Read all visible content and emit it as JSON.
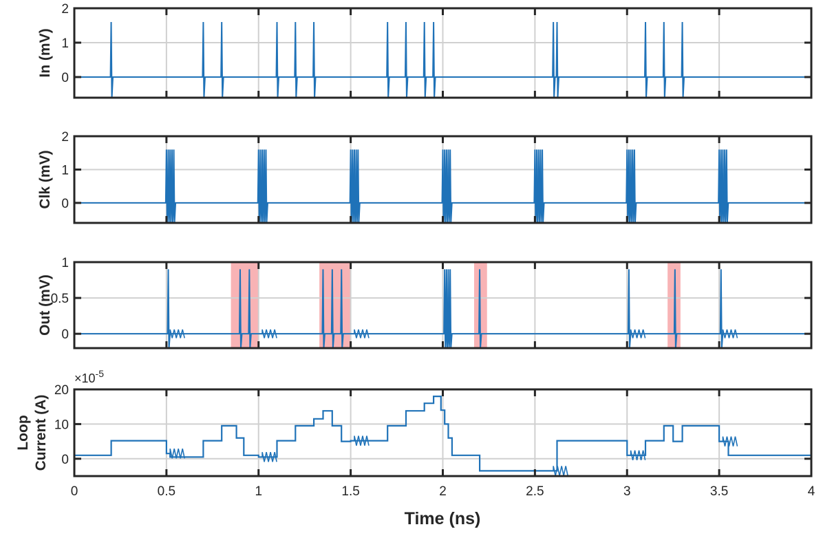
{
  "figure": {
    "xlabel": "Time (ns)"
  },
  "colors": {
    "trace": "#1f72b8",
    "grid": "#d0d0d0",
    "shade": "#f7a6a8",
    "axis": "#262626"
  },
  "chart_data": [
    {
      "type": "line",
      "ylabel": "In (mV)",
      "xlim": [
        0,
        4
      ],
      "ylim": [
        -0.6,
        2
      ],
      "yticks": [
        0,
        1,
        2
      ],
      "ytick_labels": [
        "0",
        "1",
        "2"
      ],
      "grid": true,
      "pulse": {
        "peak": 1.6,
        "trough": -0.6
      },
      "events_ns": [
        0.2,
        0.7,
        0.8,
        1.1,
        1.2,
        1.3,
        1.7,
        1.8,
        1.9,
        1.95,
        2.6,
        2.62,
        3.1,
        3.2,
        3.3
      ],
      "shaded_regions": []
    },
    {
      "type": "line",
      "ylabel": "Clk (mV)",
      "xlim": [
        0,
        4
      ],
      "ylim": [
        -0.6,
        2
      ],
      "yticks": [
        0,
        1,
        2
      ],
      "ytick_labels": [
        "0",
        "1",
        "2"
      ],
      "grid": true,
      "pulse": {
        "peak": 1.6,
        "trough": -0.6
      },
      "events_ns": [
        0.5,
        0.51,
        0.52,
        0.53,
        0.54,
        1.0,
        1.01,
        1.02,
        1.03,
        1.04,
        1.5,
        1.51,
        1.52,
        1.53,
        1.54,
        2.0,
        2.01,
        2.02,
        2.03,
        2.04,
        2.5,
        2.51,
        2.52,
        2.53,
        2.54,
        3.0,
        3.01,
        3.02,
        3.03,
        3.04,
        3.5,
        3.51,
        3.52,
        3.53,
        3.54
      ],
      "shaded_regions": []
    },
    {
      "type": "line",
      "ylabel": "Out (mV)",
      "xlim": [
        0,
        4
      ],
      "ylim": [
        -0.2,
        1
      ],
      "yticks": [
        0,
        0.5,
        1
      ],
      "ytick_labels": [
        "0",
        "0.5",
        "1"
      ],
      "grid": true,
      "pulse": {
        "peak": 0.9,
        "trough": -0.2
      },
      "events_ns": [
        0.51,
        0.9,
        0.95,
        1.35,
        1.4,
        1.45,
        2.01,
        2.02,
        2.03,
        2.04,
        2.2,
        3.01,
        3.26,
        3.51
      ],
      "ringing_ns": [
        0.52,
        1.02,
        1.52,
        3.02,
        3.52
      ],
      "shaded_regions": [
        [
          0.85,
          1.0
        ],
        [
          1.33,
          1.5
        ],
        [
          2.17,
          2.24
        ],
        [
          3.22,
          3.29
        ]
      ]
    },
    {
      "type": "line",
      "ylabel_lines": [
        "Loop",
        "Current (A)"
      ],
      "exponent_label": "×10",
      "exponent_power": "-5",
      "xlim": [
        0,
        4
      ],
      "ylim": [
        -5,
        20
      ],
      "yticks": [
        0,
        10,
        20
      ],
      "ytick_labels": [
        "0",
        "10",
        "20"
      ],
      "xticks": [
        0,
        0.5,
        1,
        1.5,
        2,
        2.5,
        3,
        3.5,
        4
      ],
      "xtick_labels": [
        "0",
        "0.5",
        "1",
        "1.5",
        "2",
        "2.5",
        "3",
        "3.5",
        "4"
      ],
      "grid": true,
      "x": [
        0,
        0.2,
        0.2,
        0.5,
        0.5,
        0.52,
        0.52,
        0.7,
        0.7,
        0.8,
        0.8,
        0.88,
        0.88,
        0.92,
        0.92,
        1.0,
        1.0,
        1.1,
        1.1,
        1.2,
        1.2,
        1.3,
        1.3,
        1.35,
        1.35,
        1.4,
        1.4,
        1.45,
        1.45,
        1.5,
        1.5,
        1.7,
        1.7,
        1.8,
        1.8,
        1.9,
        1.9,
        1.95,
        1.95,
        1.99,
        1.99,
        2.01,
        2.01,
        2.03,
        2.03,
        2.05,
        2.05,
        2.2,
        2.2,
        2.6,
        2.6,
        2.62,
        2.62,
        3.0,
        3.0,
        3.1,
        3.1,
        3.2,
        3.2,
        3.25,
        3.25,
        3.3,
        3.3,
        3.5,
        3.5,
        3.55,
        3.55,
        4.0
      ],
      "y": [
        1,
        1,
        5.2,
        5.2,
        1.5,
        1.5,
        0.5,
        0.5,
        5.2,
        5.2,
        9.5,
        9.5,
        6,
        6,
        1,
        1,
        0.5,
        0.5,
        5.2,
        5.2,
        9.5,
        9.5,
        11.5,
        11.5,
        13.8,
        13.8,
        9.5,
        9.5,
        5,
        5,
        5.2,
        5.2,
        9.5,
        9.5,
        13.8,
        13.8,
        16,
        16,
        18,
        18,
        14,
        14,
        10,
        10,
        6,
        6,
        1,
        1,
        -3.5,
        -3.5,
        -3.5,
        -3.5,
        5.2,
        5.2,
        1,
        1,
        5.2,
        5.2,
        9.5,
        9.5,
        5,
        5,
        9.5,
        9.5,
        5,
        5,
        1,
        1
      ]
    }
  ]
}
